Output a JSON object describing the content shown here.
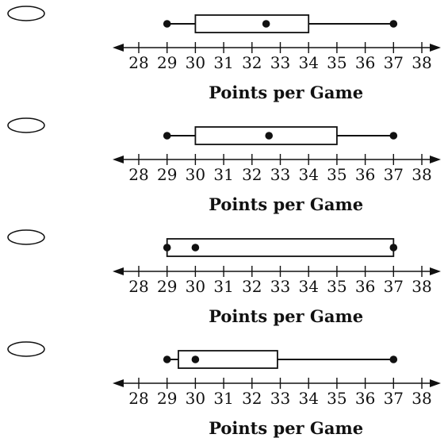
{
  "options": [
    "",
    "",
    "",
    ""
  ],
  "chart_data": [
    {
      "type": "boxplot",
      "xlabel": "Points per Game",
      "xlim": [
        28,
        38
      ],
      "ticks": [
        "28",
        "29",
        "30",
        "31",
        "32",
        "33",
        "34",
        "35",
        "36",
        "37",
        "38"
      ],
      "min": 29,
      "q1": 30,
      "median": 32.5,
      "q3": 34,
      "max": 37
    },
    {
      "type": "boxplot",
      "xlabel": "Points per Game",
      "xlim": [
        28,
        38
      ],
      "ticks": [
        "28",
        "29",
        "30",
        "31",
        "32",
        "33",
        "34",
        "35",
        "36",
        "37",
        "38"
      ],
      "min": 29,
      "q1": 30,
      "median": 32.6,
      "q3": 35,
      "max": 37
    },
    {
      "type": "boxplot",
      "xlabel": "Points per Game",
      "xlim": [
        28,
        38
      ],
      "ticks": [
        "28",
        "29",
        "30",
        "31",
        "32",
        "33",
        "34",
        "35",
        "36",
        "37",
        "38"
      ],
      "min": 29,
      "q1": 29,
      "median": 30,
      "q3": 37,
      "max": 37
    },
    {
      "type": "boxplot",
      "xlabel": "Points per Game",
      "xlim": [
        28,
        38
      ],
      "ticks": [
        "28",
        "29",
        "30",
        "31",
        "32",
        "33",
        "34",
        "35",
        "36",
        "37",
        "38"
      ],
      "min": 29,
      "q1": 29.4,
      "median": 30,
      "q3": 32.9,
      "max": 37
    }
  ]
}
